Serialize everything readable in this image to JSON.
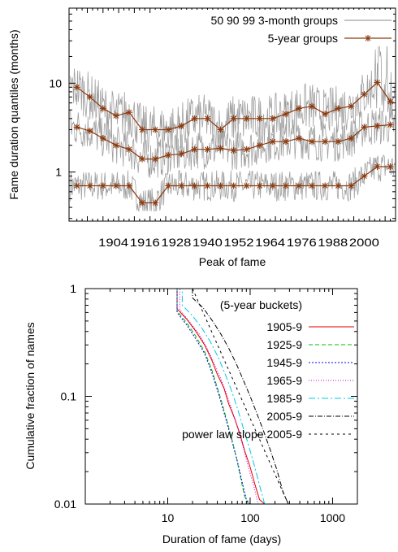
{
  "chart_data": [
    {
      "type": "line",
      "xlabel": "Peak of fame",
      "ylabel": "Fame duration quantiles (months)",
      "ylog": true,
      "xlim": [
        1887,
        2012
      ],
      "ylim": [
        0.28,
        70
      ],
      "xtick_labels": [
        "1904",
        "1916",
        "1928",
        "1940",
        "1952",
        "1964",
        "1976",
        "1988",
        "2000"
      ],
      "ytick_labels": [
        {
          "value": 1,
          "label": "1"
        },
        {
          "value": 10,
          "label": "10"
        }
      ],
      "legend_position": "top-right",
      "legend": {
        "thin_label": "50 90 99 3-month groups",
        "group_label": "5-year groups"
      },
      "thin_color": "#a0a0a0",
      "group_color": "#8b3a0f",
      "x": [
        1890,
        1895,
        1900,
        1905,
        1910,
        1915,
        1920,
        1925,
        1930,
        1935,
        1940,
        1945,
        1950,
        1955,
        1960,
        1965,
        1970,
        1975,
        1980,
        1985,
        1990,
        1995,
        2000,
        2005,
        2010
      ],
      "series": [
        {
          "name": "5-year groups",
          "values": [
            0.7,
            0.7,
            0.7,
            0.7,
            0.7,
            0.45,
            0.45,
            0.7,
            0.7,
            0.7,
            0.7,
            0.7,
            0.7,
            0.7,
            0.7,
            0.7,
            0.7,
            0.7,
            0.7,
            0.7,
            0.7,
            0.7,
            0.9,
            1.15,
            1.15
          ]
        },
        {
          "name": "5-year groups",
          "values": [
            3.2,
            2.9,
            2.4,
            2.0,
            1.8,
            1.4,
            1.4,
            1.55,
            1.6,
            1.8,
            1.8,
            1.85,
            1.75,
            1.8,
            2.0,
            2.2,
            2.2,
            2.4,
            2.2,
            2.2,
            2.2,
            2.4,
            3.2,
            3.3,
            3.4
          ]
        },
        {
          "name": "5-year groups",
          "values": [
            9.0,
            7.0,
            5.2,
            4.3,
            4.7,
            3.0,
            3.0,
            3.0,
            3.3,
            4.0,
            4.0,
            3.0,
            4.0,
            4.0,
            4.0,
            4.0,
            4.5,
            5.2,
            5.5,
            4.5,
            5.2,
            5.5,
            7.5,
            10.2,
            6.2
          ]
        }
      ]
    },
    {
      "type": "line",
      "xlabel": "Duration of fame (days)",
      "ylabel": "Cumulative fraction of names",
      "xlog": true,
      "ylog": true,
      "xlim": [
        1,
        2000
      ],
      "ylim": [
        0.01,
        1
      ],
      "xtick_labels": [
        {
          "value": 10,
          "label": "10"
        },
        {
          "value": 100,
          "label": "100"
        },
        {
          "value": 1000,
          "label": "1000"
        }
      ],
      "ytick_labels": [
        {
          "value": 1,
          "label": "1"
        },
        {
          "value": 0.1,
          "label": "0.1"
        },
        {
          "value": 0.01,
          "label": "0.01"
        }
      ],
      "legend_position": "top-right",
      "legend_title": "(5-year buckets)",
      "series": [
        {
          "name": "1905-9",
          "color": "#e00000",
          "dash": "",
          "points": [
            [
              1,
              1
            ],
            [
              13,
              1
            ],
            [
              13,
              0.65
            ],
            [
              17,
              0.52
            ],
            [
              22,
              0.4
            ],
            [
              28,
              0.3
            ],
            [
              34,
              0.22
            ],
            [
              40,
              0.16
            ],
            [
              48,
              0.12
            ],
            [
              55,
              0.085
            ],
            [
              65,
              0.062
            ],
            [
              75,
              0.045
            ],
            [
              85,
              0.032
            ],
            [
              100,
              0.022
            ],
            [
              115,
              0.015
            ],
            [
              130,
              0.011
            ],
            [
              150,
              0.008
            ]
          ]
        },
        {
          "name": "1925-9",
          "color": "#00c000",
          "dash": "5,3",
          "points": [
            [
              1,
              1
            ],
            [
              13,
              1
            ],
            [
              13,
              0.62
            ],
            [
              17,
              0.48
            ],
            [
              22,
              0.36
            ],
            [
              28,
              0.26
            ],
            [
              34,
              0.18
            ],
            [
              40,
              0.12
            ],
            [
              46,
              0.085
            ],
            [
              52,
              0.06
            ],
            [
              60,
              0.04
            ],
            [
              68,
              0.027
            ],
            [
              76,
              0.018
            ],
            [
              85,
              0.012
            ],
            [
              95,
              0.008
            ]
          ]
        },
        {
          "name": "1945-9",
          "color": "#0000e0",
          "dash": "2,2",
          "points": [
            [
              1,
              1
            ],
            [
              13,
              1
            ],
            [
              13,
              0.6
            ],
            [
              17,
              0.46
            ],
            [
              22,
              0.34
            ],
            [
              28,
              0.25
            ],
            [
              34,
              0.17
            ],
            [
              40,
              0.115
            ],
            [
              46,
              0.08
            ],
            [
              53,
              0.055
            ],
            [
              61,
              0.037
            ],
            [
              70,
              0.025
            ],
            [
              80,
              0.016
            ],
            [
              90,
              0.011
            ],
            [
              100,
              0.008
            ]
          ]
        },
        {
          "name": "1965-9",
          "color": "#d000d0",
          "dash": "1,2",
          "points": [
            [
              1,
              1
            ],
            [
              14,
              1
            ],
            [
              14,
              0.64
            ],
            [
              18,
              0.5
            ],
            [
              24,
              0.38
            ],
            [
              30,
              0.28
            ],
            [
              37,
              0.2
            ],
            [
              45,
              0.14
            ],
            [
              53,
              0.1
            ],
            [
              62,
              0.07
            ],
            [
              72,
              0.048
            ],
            [
              83,
              0.033
            ],
            [
              95,
              0.022
            ],
            [
              110,
              0.015
            ],
            [
              125,
              0.01
            ],
            [
              140,
              0.008
            ]
          ]
        },
        {
          "name": "1985-9",
          "color": "#00c8e8",
          "dash": "8,3,2,3",
          "points": [
            [
              1,
              1
            ],
            [
              15,
              1
            ],
            [
              15,
              0.7
            ],
            [
              20,
              0.56
            ],
            [
              26,
              0.43
            ],
            [
              33,
              0.32
            ],
            [
              41,
              0.23
            ],
            [
              50,
              0.16
            ],
            [
              60,
              0.11
            ],
            [
              71,
              0.075
            ],
            [
              83,
              0.05
            ],
            [
              97,
              0.034
            ],
            [
              112,
              0.023
            ],
            [
              130,
              0.015
            ],
            [
              150,
              0.01
            ],
            [
              170,
              0.008
            ]
          ]
        },
        {
          "name": "2005-9",
          "color": "#000000",
          "dash": "6,2,1,2",
          "points": [
            [
              1,
              1
            ],
            [
              20,
              1
            ],
            [
              20,
              0.82
            ],
            [
              27,
              0.66
            ],
            [
              35,
              0.5
            ],
            [
              44,
              0.38
            ],
            [
              55,
              0.28
            ],
            [
              68,
              0.2
            ],
            [
              83,
              0.14
            ],
            [
              100,
              0.1
            ],
            [
              120,
              0.07
            ],
            [
              145,
              0.048
            ],
            [
              175,
              0.032
            ],
            [
              210,
              0.021
            ],
            [
              250,
              0.013
            ],
            [
              290,
              0.008
            ]
          ]
        },
        {
          "name": "power law slope 2005-9",
          "color": "#000000",
          "dash": "3,4",
          "points": [
            [
              20,
              1
            ],
            [
              290,
              0.0085
            ]
          ]
        }
      ]
    }
  ]
}
